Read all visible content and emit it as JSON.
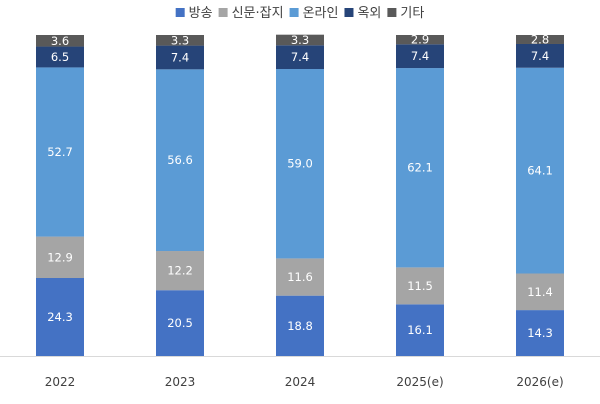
{
  "chart_data": {
    "type": "bar",
    "stacked": true,
    "categories": [
      "2022",
      "2023",
      "2024",
      "2025(e)",
      "2026(e)"
    ],
    "series": [
      {
        "name": "방송",
        "color": "#4472C4",
        "label_color": "#ffffff",
        "values": [
          24.3,
          20.5,
          18.8,
          16.1,
          14.3
        ]
      },
      {
        "name": "신문·잡지",
        "color": "#A5A5A5",
        "label_color": "#ffffff",
        "values": [
          12.9,
          12.2,
          11.6,
          11.5,
          11.4
        ]
      },
      {
        "name": "온라인",
        "color": "#5B9BD5",
        "label_color": "#ffffff",
        "values": [
          52.7,
          56.6,
          59.0,
          62.1,
          64.1
        ]
      },
      {
        "name": "옥외",
        "color": "#264478",
        "label_color": "#ffffff",
        "values": [
          6.5,
          7.4,
          7.4,
          7.4,
          7.4
        ]
      },
      {
        "name": "기타",
        "color": "#595959",
        "label_color": "#ffffff",
        "values": [
          3.6,
          3.3,
          3.3,
          2.9,
          2.8
        ]
      }
    ],
    "labels": [
      [
        "24.3",
        "20.5",
        "18.8",
        "16.1",
        "14.3"
      ],
      [
        "12.9",
        "12.2",
        "11.6",
        "11.5",
        "11.4"
      ],
      [
        "52.7",
        "56.6",
        "59.0",
        "62.1",
        "64.1"
      ],
      [
        "6.5",
        "7.4",
        "7.4",
        "7.4",
        "7.4"
      ],
      [
        "3.6",
        "3.3",
        "3.3",
        "2.9",
        "2.8"
      ]
    ],
    "ylim": [
      0,
      100
    ],
    "legend_position": "top",
    "grid": false,
    "title": "",
    "xlabel": "",
    "ylabel": ""
  }
}
